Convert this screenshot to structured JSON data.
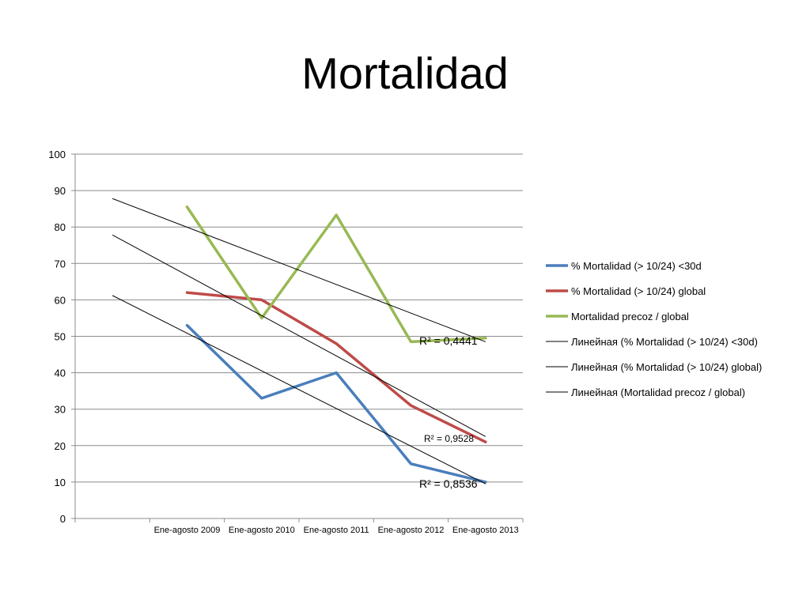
{
  "slide": {
    "title": "Mortalidad"
  },
  "chart_data": {
    "type": "line",
    "ylim": [
      0,
      100
    ],
    "yticks": [
      0,
      10,
      20,
      30,
      40,
      50,
      60,
      70,
      80,
      90,
      100
    ],
    "categories": [
      "",
      "Ene-agosto 2009",
      "Ene-agosto 2010",
      "Ene-agosto 2011",
      "Ene-agosto 2012",
      "Ene-agosto 2013"
    ],
    "grid": "horizontal",
    "legend_position": "right",
    "series": [
      {
        "name": "% Mortalidad (> 10/24) <30d",
        "color": "#4a7ebb",
        "values": [
          null,
          53,
          33,
          40,
          15,
          10
        ]
      },
      {
        "name": "% Mortalidad (> 10/24) global",
        "color": "#be4b48",
        "values": [
          null,
          62,
          60,
          48,
          31,
          21
        ]
      },
      {
        "name": "Mortalidad precoz / global",
        "color": "#98b954",
        "values": [
          null,
          85.5,
          55,
          83.3,
          48.5,
          49.5
        ]
      }
    ],
    "trendlines": [
      {
        "name": "Линейная (% Mortalidad (> 10/24) <30d)",
        "color": "#000000",
        "start": 61.2,
        "end": 9.5,
        "r2": "R² = 0,8536"
      },
      {
        "name": "Линейная (% Mortalidad (> 10/24) global)",
        "color": "#000000",
        "start": 77.8,
        "end": 22.5,
        "r2": "R² = 0,9528"
      },
      {
        "name": "Линейная (Mortalidad precoz / global)",
        "color": "#000000",
        "start": 87.8,
        "end": 48.5,
        "r2": "R² = 0,4441"
      }
    ]
  }
}
